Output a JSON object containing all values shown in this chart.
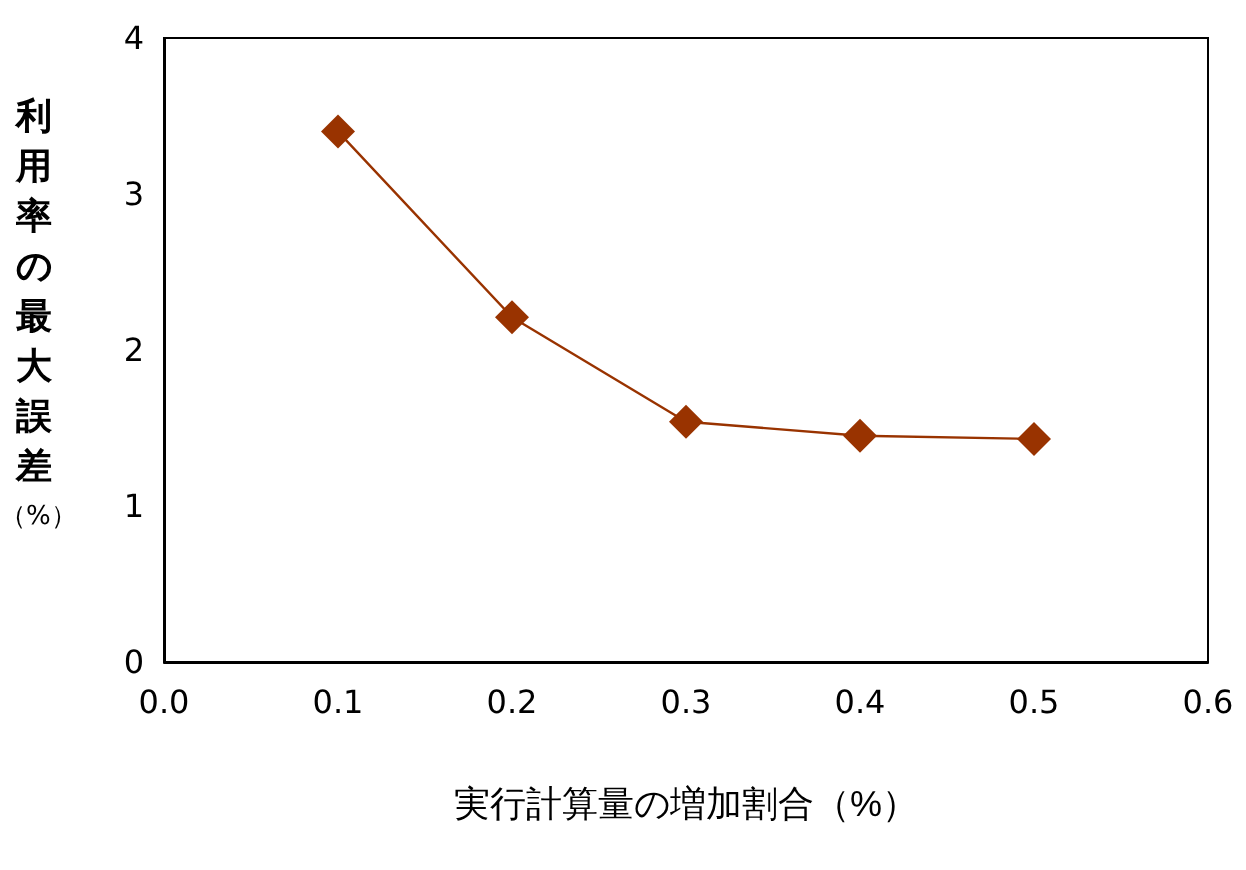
{
  "chart_data": {
    "type": "line",
    "xlabel": "実行計算量の増加割合（%）",
    "ylabel": "利用率の最大誤差（%）",
    "x": [
      0.1,
      0.2,
      0.3,
      0.4,
      0.5
    ],
    "series": [
      {
        "color": "#993300",
        "values": [
          3.4,
          2.21,
          1.54,
          1.45,
          1.43
        ]
      }
    ],
    "xlim": [
      0,
      0.6
    ],
    "xticks": [
      "0.0",
      0.1,
      0.2,
      0.3,
      0.4,
      0.5,
      0.6
    ],
    "ylim": [
      0,
      4
    ],
    "yticks": [
      0,
      1,
      2,
      3,
      4
    ],
    "grid": false,
    "marker": "diamond",
    "line_style": "solid"
  }
}
